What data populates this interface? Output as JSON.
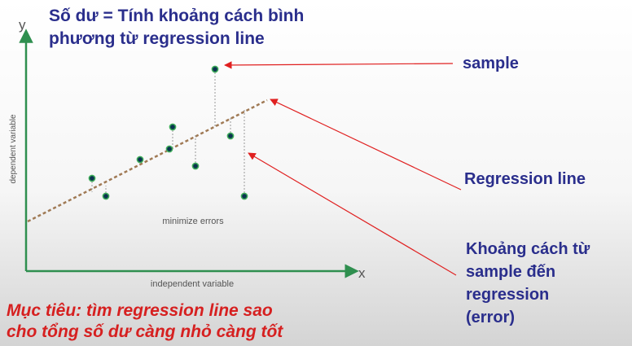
{
  "title": "Số dư = Tính khoảng cách bình\nphương từ regression line",
  "axes": {
    "y_letter": "y",
    "x_letter": "x",
    "y_label": "dependent variable",
    "x_label": "independent variable"
  },
  "annotations": {
    "center_note": "minimize errors",
    "sample": "sample",
    "regression_line": "Regression line",
    "distance": "Khoảng cách từ\nsample đến\nregression\n(error)"
  },
  "goal": "Mục tiêu: tìm regression line sao\ncho tổng số dư càng nhỏ càng tốt",
  "colors": {
    "title": "#2a2e8c",
    "goal": "#d62020",
    "axis": "#2f8f4f",
    "regression": "#a07a55",
    "arrow": "#e02020",
    "point": "#0b3550",
    "point_ring": "#3fae5a"
  }
}
